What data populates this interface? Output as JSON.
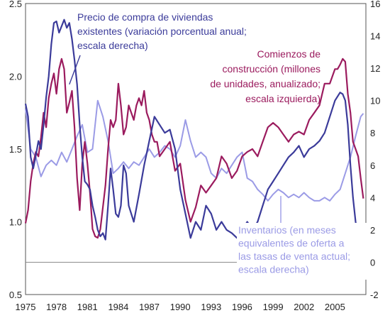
{
  "chart_data": {
    "type": "line",
    "x_ticks": [
      "1975",
      "1978",
      "1981",
      "1984",
      "1987",
      "1990",
      "1993",
      "1996",
      "1999",
      "2002",
      "2005"
    ],
    "y_left": {
      "min": 0.5,
      "max": 2.5,
      "ticks": [
        "0.5",
        "1.0",
        "1.5",
        "2.0",
        "2.5"
      ]
    },
    "y_right": {
      "min": -2,
      "max": 16,
      "ticks": [
        "-2",
        "0",
        "2",
        "4",
        "6",
        "8",
        "10",
        "12",
        "14",
        "16"
      ]
    },
    "reference_line": {
      "axis": "right",
      "value": 0
    },
    "grid": false,
    "series": [
      {
        "key": "price",
        "axis": "right",
        "color": "#3b3b9a",
        "label_lines": [
          "Precio de compra de viviendas",
          "existentes (variación porcentual anual;",
          "escala derecha)"
        ],
        "x": [
          1975.0,
          1975.25,
          1975.5,
          1975.75,
          1976.0,
          1976.25,
          1976.5,
          1976.75,
          1977.0,
          1977.25,
          1977.5,
          1977.75,
          1978.0,
          1978.25,
          1978.5,
          1978.75,
          1979.0,
          1979.25,
          1979.5,
          1979.75,
          1980.0,
          1980.25,
          1980.5,
          1980.75,
          1981.0,
          1981.25,
          1981.5,
          1981.75,
          1982.0,
          1982.25,
          1982.5,
          1982.75,
          1983.0,
          1983.25,
          1983.5,
          1983.75,
          1984.0,
          1984.25,
          1984.5,
          1984.75,
          1985.0,
          1985.5,
          1986.0,
          1986.5,
          1987.0,
          1987.5,
          1988.0,
          1988.5,
          1989.0,
          1989.5,
          1990.0,
          1990.5,
          1991.0,
          1991.5,
          1992.0,
          1992.5,
          1993.0,
          1993.5,
          1994.0,
          1994.5,
          1995.0,
          1995.5,
          1996.0,
          1996.5,
          1997.0,
          1997.5,
          1998.0,
          1998.5,
          1999.0,
          1999.5,
          2000.0,
          2000.5,
          2001.0,
          2001.5,
          2002.0,
          2002.5,
          2003.0,
          2003.5,
          2004.0,
          2004.5,
          2005.0,
          2005.5,
          2005.75,
          2006.0,
          2006.25,
          2006.5,
          2006.75,
          2007.0,
          2007.25,
          2007.5,
          2007.75
        ],
        "values": [
          9.8,
          9.0,
          6.5,
          5.8,
          6.6,
          7.5,
          7.0,
          8.5,
          10.2,
          11.5,
          13.5,
          14.8,
          14.9,
          14.2,
          14.6,
          15.0,
          14.5,
          14.8,
          13.8,
          12.5,
          11.0,
          8.5,
          6.5,
          5.0,
          4.8,
          4.5,
          3.5,
          2.8,
          2.0,
          1.6,
          1.8,
          1.4,
          3.5,
          5.8,
          4.5,
          3.0,
          2.8,
          3.5,
          6.0,
          5.5,
          3.5,
          2.5,
          4.2,
          6.0,
          7.5,
          9.0,
          8.5,
          8.0,
          8.2,
          7.0,
          4.5,
          3.0,
          1.5,
          2.5,
          2.0,
          3.5,
          3.0,
          2.0,
          2.5,
          2.0,
          1.8,
          1.5,
          2.0,
          2.5,
          2.0,
          2.5,
          3.5,
          4.5,
          5.0,
          5.5,
          6.0,
          6.5,
          6.8,
          7.2,
          6.5,
          7.0,
          7.2,
          7.5,
          8.0,
          9.0,
          10.0,
          10.5,
          10.4,
          10.0,
          8.5,
          6.0,
          4.0,
          2.5,
          1.5,
          0.5,
          -0.4
        ]
      },
      {
        "key": "starts",
        "axis": "left",
        "color": "#9b1b5e",
        "label_lines": [
          "Comienzos de",
          "construcción (millones",
          "de unidades, anualizado;",
          "escala izquierda)"
        ],
        "x": [
          1975.0,
          1975.25,
          1975.5,
          1975.75,
          1976.0,
          1976.25,
          1976.5,
          1976.75,
          1977.0,
          1977.25,
          1977.5,
          1977.75,
          1978.0,
          1978.25,
          1978.5,
          1978.75,
          1979.0,
          1979.25,
          1979.5,
          1979.75,
          1980.0,
          1980.25,
          1980.5,
          1980.75,
          1981.0,
          1981.25,
          1981.5,
          1981.75,
          1982.0,
          1982.25,
          1982.5,
          1982.75,
          1983.0,
          1983.25,
          1983.5,
          1983.75,
          1984.0,
          1984.25,
          1984.5,
          1984.75,
          1985.0,
          1985.25,
          1985.5,
          1985.75,
          1986.0,
          1986.25,
          1986.5,
          1986.75,
          1987.0,
          1987.25,
          1987.5,
          1987.75,
          1988.0,
          1988.5,
          1989.0,
          1989.5,
          1990.0,
          1990.5,
          1991.0,
          1991.5,
          1992.0,
          1992.5,
          1993.0,
          1993.5,
          1994.0,
          1994.5,
          1995.0,
          1995.5,
          1996.0,
          1996.5,
          1997.0,
          1997.5,
          1998.0,
          1998.5,
          1999.0,
          1999.5,
          2000.0,
          2000.5,
          2001.0,
          2001.5,
          2002.0,
          2002.5,
          2003.0,
          2003.5,
          2004.0,
          2004.5,
          2005.0,
          2005.25,
          2005.5,
          2005.75,
          2006.0,
          2006.25,
          2006.5,
          2006.75,
          2007.0,
          2007.25,
          2007.5,
          2007.75
        ],
        "values": [
          0.99,
          1.08,
          1.28,
          1.4,
          1.48,
          1.45,
          1.58,
          1.75,
          1.65,
          1.85,
          1.95,
          2.02,
          1.88,
          2.05,
          2.12,
          2.05,
          1.75,
          1.82,
          1.9,
          1.65,
          1.3,
          1.08,
          1.4,
          1.55,
          1.4,
          1.2,
          0.95,
          0.9,
          0.89,
          0.95,
          1.1,
          1.25,
          1.5,
          1.7,
          1.65,
          1.7,
          1.95,
          1.8,
          1.6,
          1.65,
          1.8,
          1.75,
          1.7,
          1.8,
          1.85,
          1.8,
          1.9,
          1.75,
          1.7,
          1.6,
          1.55,
          1.55,
          1.45,
          1.5,
          1.55,
          1.35,
          1.4,
          1.15,
          1.0,
          1.1,
          1.25,
          1.2,
          1.25,
          1.3,
          1.45,
          1.4,
          1.3,
          1.35,
          1.45,
          1.48,
          1.5,
          1.45,
          1.55,
          1.65,
          1.68,
          1.65,
          1.6,
          1.55,
          1.6,
          1.62,
          1.6,
          1.7,
          1.75,
          1.8,
          1.95,
          1.95,
          2.05,
          2.05,
          2.08,
          2.12,
          2.1,
          1.88,
          1.75,
          1.55,
          1.5,
          1.45,
          1.3,
          1.16
        ]
      },
      {
        "key": "inventory",
        "axis": "right",
        "color": "#9b9be6",
        "label_lines": [
          "Inventarios (en meses",
          "equivalentes de oferta a",
          "las tasas de venta actual;",
          "escala derecha)"
        ],
        "x": [
          1975.0,
          1975.5,
          1976.0,
          1976.5,
          1977.0,
          1977.5,
          1978.0,
          1978.5,
          1979.0,
          1979.5,
          1980.0,
          1980.5,
          1981.0,
          1981.5,
          1982.0,
          1982.5,
          1983.0,
          1983.5,
          1984.0,
          1984.5,
          1985.0,
          1985.5,
          1986.0,
          1986.5,
          1987.0,
          1987.5,
          1988.0,
          1988.5,
          1989.0,
          1989.5,
          1990.0,
          1990.5,
          1991.0,
          1991.5,
          1992.0,
          1992.5,
          1993.0,
          1993.5,
          1994.0,
          1994.5,
          1995.0,
          1995.5,
          1996.0,
          1996.5,
          1997.0,
          1997.5,
          1998.0,
          1998.5,
          1999.0,
          1999.5,
          2000.0,
          2000.5,
          2001.0,
          2001.5,
          2002.0,
          2002.5,
          2003.0,
          2003.5,
          2004.0,
          2004.5,
          2005.0,
          2005.5,
          2006.0,
          2006.5,
          2007.0,
          2007.5,
          2007.75
        ],
        "values": [
          9.5,
          7.0,
          6.5,
          5.3,
          6.0,
          6.3,
          6.0,
          6.8,
          6.2,
          7.0,
          7.8,
          8.5,
          6.8,
          7.0,
          10.0,
          9.0,
          7.5,
          5.5,
          5.8,
          6.2,
          5.8,
          6.2,
          6.0,
          6.5,
          7.0,
          6.5,
          6.8,
          7.2,
          7.0,
          6.5,
          7.2,
          8.8,
          7.5,
          6.5,
          6.8,
          6.5,
          5.5,
          5.2,
          5.8,
          5.5,
          6.0,
          6.5,
          6.8,
          5.2,
          5.0,
          4.5,
          4.2,
          3.8,
          4.2,
          4.5,
          4.3,
          4.0,
          4.2,
          4.0,
          4.3,
          4.0,
          3.8,
          3.8,
          4.0,
          3.8,
          4.2,
          4.5,
          5.5,
          6.5,
          7.8,
          9.0,
          9.2
        ]
      }
    ],
    "pointers": [
      {
        "key": "price",
        "from": [
          1980.3,
          12.8
        ],
        "to": [
          1979.25,
          11.0
        ]
      },
      {
        "key": "inventory",
        "from": [
          1999.75,
          1.9
        ],
        "to": [
          1999.75,
          4.1
        ]
      }
    ]
  }
}
